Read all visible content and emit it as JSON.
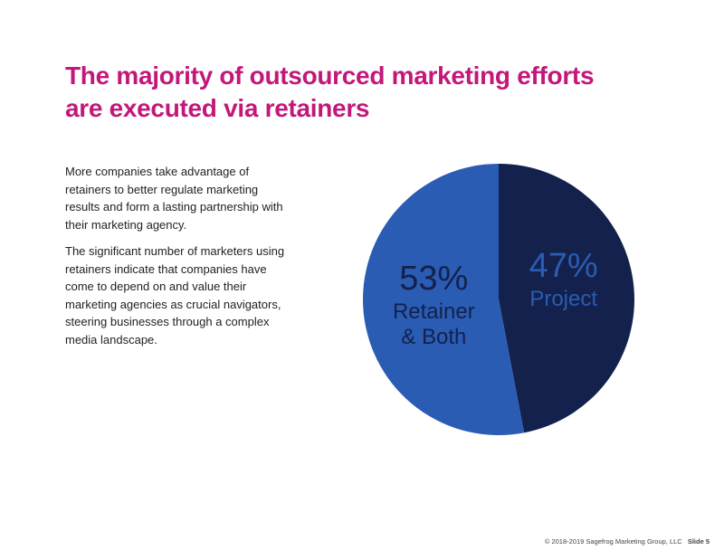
{
  "title_line1": "The majority of outsourced marketing efforts",
  "title_line2": "are executed via retainers",
  "paragraphs": [
    "More companies take advantage of retainers to better regulate marketing results and form a lasting partnership with their marketing agency.",
    "The significant number of marketers using retainers indicate that companies have come to depend on and value their marketing agencies as crucial navigators, steering businesses through a complex media landscape."
  ],
  "footer": {
    "copyright": "© 2018-2019 Sagefrog Marketing Group, LLC",
    "slide": "Slide 5"
  },
  "colors": {
    "title": "#c2187a",
    "retainer": "#2a5cb3",
    "project": "#13214c"
  },
  "chart_data": {
    "type": "pie",
    "slices": [
      {
        "label_line1": "Retainer",
        "label_line2": "& Both",
        "value": 53,
        "display": "53%",
        "color": "#2a5cb3",
        "text_color": "#13214c"
      },
      {
        "label_line1": "Project",
        "label_line2": "",
        "value": 47,
        "display": "47%",
        "color": "#13214c",
        "text_color": "#2a5cb3"
      }
    ],
    "legend": "none"
  }
}
